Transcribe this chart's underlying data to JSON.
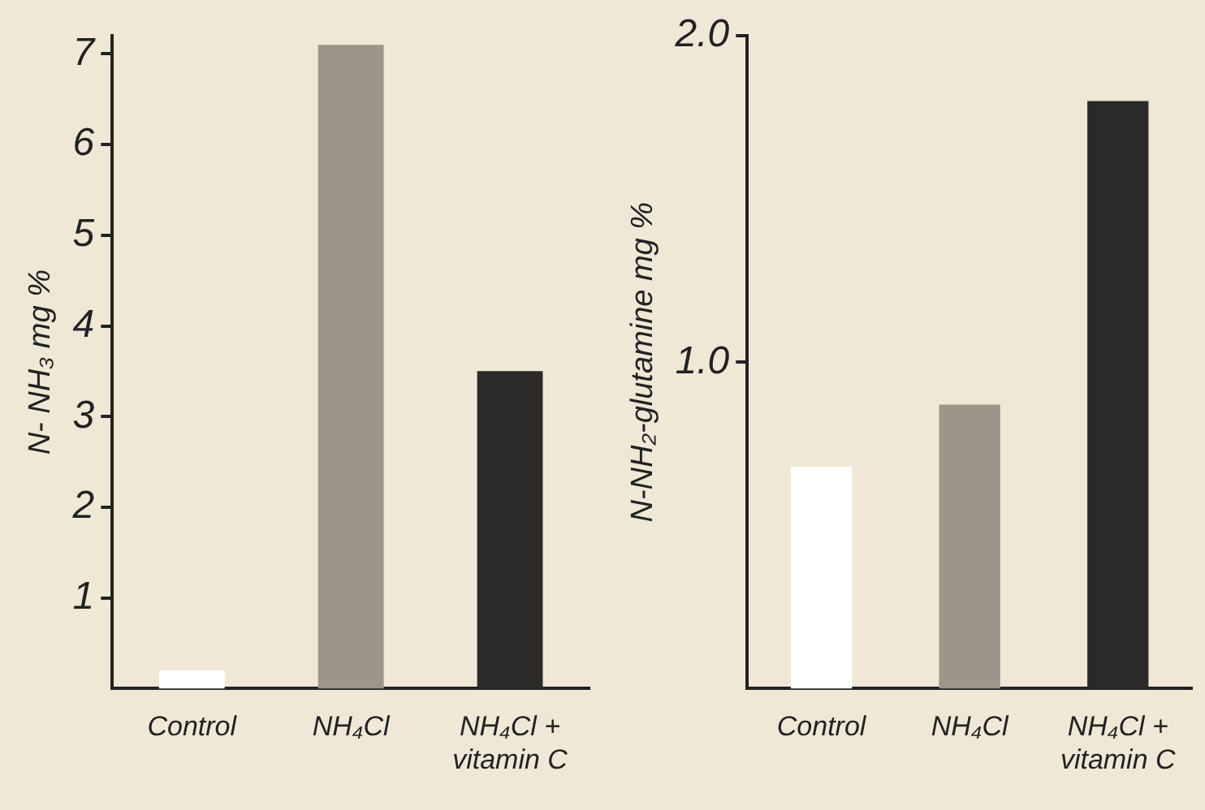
{
  "chart_data": [
    {
      "type": "bar",
      "ylabel": "N- NH₃ mg %",
      "categories": [
        "Control",
        "NH₄Cl",
        "NH₄Cl + vitamin C"
      ],
      "values": [
        0.2,
        7.1,
        3.5
      ],
      "colors": [
        "#ffffff",
        "#9c968a",
        "#2b2a28"
      ],
      "ylim": [
        0,
        7.2
      ],
      "yticks": [
        1,
        2,
        3,
        4,
        5,
        6,
        7
      ],
      "grid": false,
      "legend": false
    },
    {
      "type": "bar",
      "ylabel": "N-NH₂-glutamine mg %",
      "categories": [
        "Control",
        "NH₄Cl",
        "NH₄Cl + vitamin C"
      ],
      "values": [
        0.68,
        0.87,
        1.8
      ],
      "colors": [
        "#ffffff",
        "#9c968a",
        "#2b2a28"
      ],
      "ylim": [
        0,
        2.0
      ],
      "yticks": [
        {
          "value": 1.0,
          "label": "1.0"
        },
        {
          "value": 2.0,
          "label": "2.0"
        }
      ],
      "grid": false,
      "legend": false
    }
  ]
}
